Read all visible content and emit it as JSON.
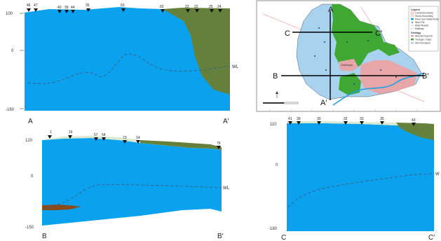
{
  "colors": {
    "aquifer": "#0aa2ee",
    "topsoil": "#d9ead0",
    "clay": "#64803a",
    "lens": "#8a4a1c",
    "water_table": "#3b5f86",
    "map_recharge_blue": "#a9d2ee",
    "map_green": "#3ea832",
    "map_pink": "#e6a6aa",
    "map_river": "#20a0e0"
  },
  "section_aa": {
    "start": "A",
    "end": "A′",
    "y_ticks": [
      "100",
      "0",
      "-160"
    ],
    "wl_label": "WL",
    "wells": [
      "46",
      "47",
      "40",
      "39",
      "44",
      "35",
      "63",
      "62",
      "23",
      "22",
      "25",
      "24"
    ]
  },
  "section_bb": {
    "start": "B",
    "end": "B′",
    "y_ticks": [
      "120",
      "0",
      "-150"
    ],
    "wl_label": "WL",
    "wells": [
      "1",
      "16",
      "57",
      "54",
      "73",
      "14",
      "76"
    ]
  },
  "section_cc": {
    "start": "C",
    "end": "C′",
    "y_ticks": [
      "110",
      "0",
      "-180"
    ],
    "wl_label": "W",
    "wells": [
      "41",
      "39",
      "30",
      "32",
      "33",
      "35",
      "43"
    ]
  },
  "map": {
    "lines": {
      "a_top": "A",
      "a_bottom": "A′",
      "b_left": "B",
      "b_right": "B′",
      "c_left": "C",
      "c_right": "C′"
    },
    "legend": {
      "title": "Legend",
      "items": [
        "Canal Boundary",
        "Study Boundary",
        "River and Waterbody",
        "Stud Pts",
        "Main Roads",
        "Railway"
      ],
      "geology_title": "Geology",
      "geology_items": [
        "Alluvial Deposit",
        "Younger Clays",
        "Silt Formation"
      ]
    },
    "place_label": "Gadhinglaj"
  }
}
